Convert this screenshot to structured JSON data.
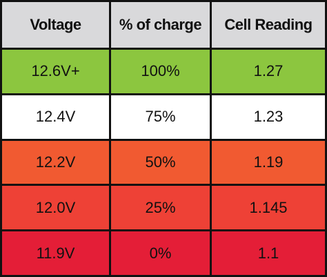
{
  "table": {
    "header": [
      "Voltage",
      "% of charge",
      "Cell Reading"
    ],
    "rows": [
      [
        "12.6V+",
        "100%",
        "1.27"
      ],
      [
        "12.4V",
        "75%",
        "1.23"
      ],
      [
        "12.2V",
        "50%",
        "1.19"
      ],
      [
        "12.0V",
        "25%",
        "1.145"
      ],
      [
        "11.9V",
        "0%",
        "1.1"
      ]
    ]
  }
}
